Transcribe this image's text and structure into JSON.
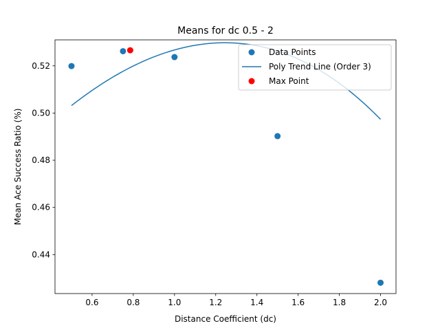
{
  "chart_data": {
    "type": "scatter",
    "title": "Means for dc 0.5 - 2",
    "xlabel": "Distance Coefficient (dc)",
    "ylabel": "Mean Ace Success Ratio (%)",
    "xlim": [
      0.42,
      2.075
    ],
    "ylim": [
      0.4235,
      0.531
    ],
    "xticks": [
      0.6,
      0.8,
      1.0,
      1.2,
      1.4,
      1.6,
      1.8,
      2.0
    ],
    "xtick_labels": [
      "0.6",
      "0.8",
      "1.0",
      "1.2",
      "1.4",
      "1.6",
      "1.8",
      "2.0"
    ],
    "yticks": [
      0.44,
      0.46,
      0.48,
      0.5,
      0.52
    ],
    "ytick_labels": [
      "0.44",
      "0.46",
      "0.48",
      "0.50",
      "0.52"
    ],
    "grid": false,
    "legend_position": "top-right",
    "series": [
      {
        "name": "Data Points",
        "kind": "scatter",
        "color": "#1f77b4",
        "points": [
          {
            "x": 0.5,
            "y": 0.5199
          },
          {
            "x": 0.75,
            "y": 0.5262
          },
          {
            "x": 1.0,
            "y": 0.5237
          },
          {
            "x": 1.5,
            "y": 0.4902
          },
          {
            "x": 2.0,
            "y": 0.4281
          }
        ]
      },
      {
        "name": "Poly Trend Line (Order 3)",
        "kind": "line",
        "color": "#1f77b4",
        "x_range": [
          0.5,
          2.0
        ],
        "coefficients": [
          -0.005933,
          -0.030267,
          0.102933,
          0.46
        ]
      },
      {
        "name": "Max Point",
        "kind": "scatter",
        "color": "#ff0000",
        "points": [
          {
            "x": 0.785,
            "y": 0.5266
          }
        ]
      }
    ]
  }
}
